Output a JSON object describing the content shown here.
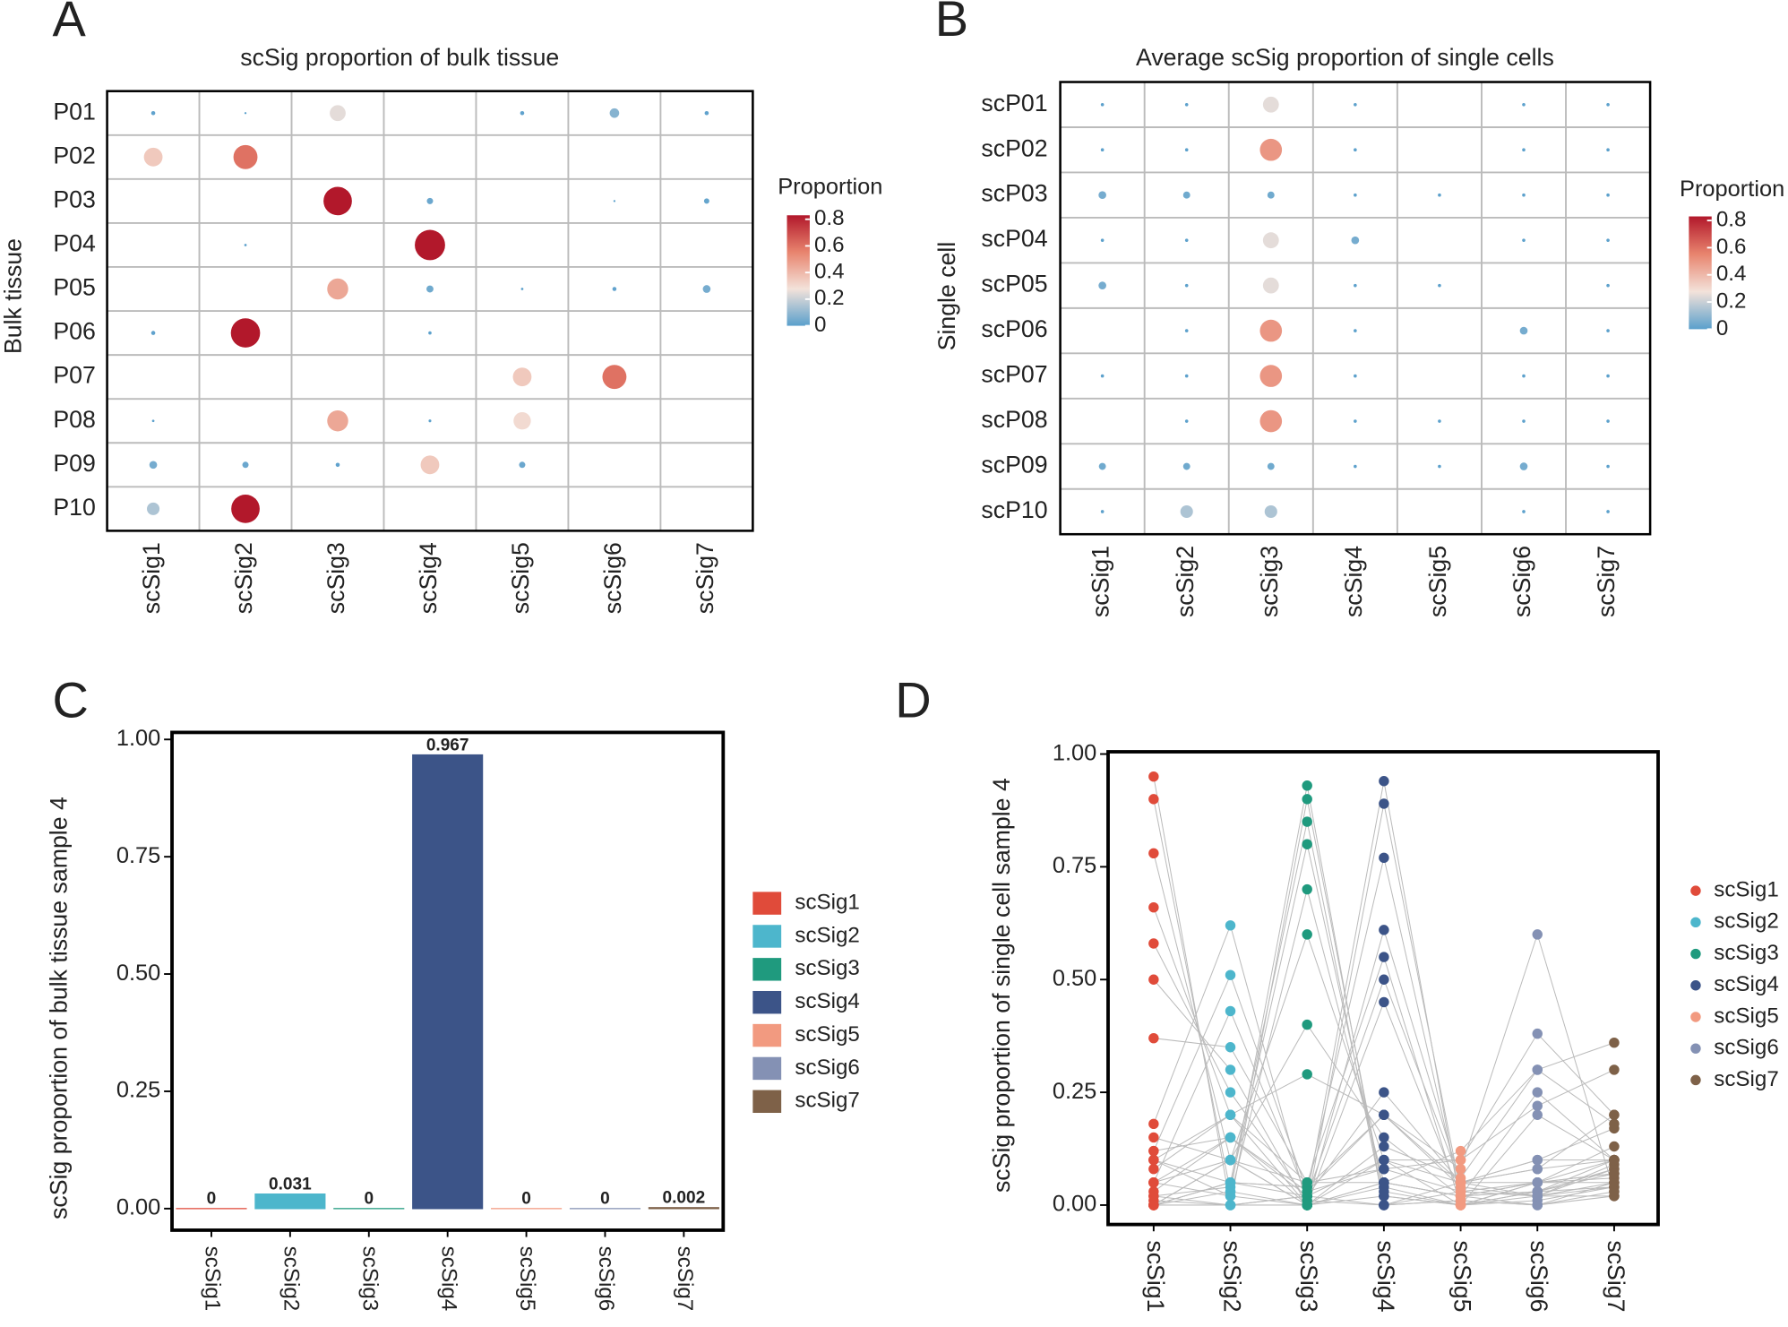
{
  "chart_data": [
    {
      "type": "dot",
      "panel": "A",
      "title": "scSig proportion of bulk tissue",
      "ylabel": "Bulk tissue",
      "x_categories": [
        "scSig1",
        "scSig2",
        "scSig3",
        "scSig4",
        "scSig5",
        "scSig6",
        "scSig7"
      ],
      "y_categories": [
        "P01",
        "P02",
        "P03",
        "P04",
        "P05",
        "P06",
        "P07",
        "P08",
        "P09",
        "P10"
      ],
      "values": [
        [
          0.01,
          0.001,
          0.25,
          null,
          0.01,
          0.08,
          0.01
        ],
        [
          0.35,
          0.6,
          null,
          null,
          null,
          null,
          null
        ],
        [
          null,
          null,
          0.85,
          0.03,
          null,
          0.001,
          0.02
        ],
        [
          null,
          0.002,
          null,
          0.97,
          null,
          null,
          null
        ],
        [
          null,
          null,
          0.45,
          0.04,
          0.002,
          0.01,
          0.05
        ],
        [
          0.01,
          0.9,
          null,
          0.005,
          null,
          null,
          null
        ],
        [
          null,
          null,
          null,
          null,
          0.35,
          0.6,
          null
        ],
        [
          0.002,
          null,
          0.45,
          0.003,
          0.3,
          null,
          null
        ],
        [
          0.05,
          0.03,
          0.01,
          0.35,
          0.03,
          null,
          null
        ],
        [
          0.15,
          0.85,
          null,
          null,
          null,
          null,
          null
        ]
      ],
      "legend_title": "Proportion",
      "colorscale": [
        "#5aa0cc",
        "#f3e2da",
        "#e8846e",
        "#b2182b"
      ],
      "color_lim": [
        0,
        0.83
      ],
      "color_ticks": [
        0,
        0.2,
        0.4,
        0.6,
        0.8
      ],
      "grid": true
    },
    {
      "type": "dot",
      "panel": "B",
      "title": "Average scSig proportion of single cells",
      "ylabel": "Single cell",
      "x_categories": [
        "scSig1",
        "scSig2",
        "scSig3",
        "scSig4",
        "scSig5",
        "scSig6",
        "scSig7"
      ],
      "y_categories": [
        "scP01",
        "scP02",
        "scP03",
        "scP04",
        "scP05",
        "scP06",
        "scP07",
        "scP08",
        "scP09",
        "scP10"
      ],
      "values": [
        [
          0.005,
          0.005,
          0.25,
          0.005,
          null,
          0.005,
          0.005
        ],
        [
          0.005,
          0.005,
          0.5,
          0.005,
          null,
          0.005,
          0.005
        ],
        [
          0.05,
          0.04,
          0.04,
          0.005,
          0.005,
          0.005,
          0.005
        ],
        [
          0.005,
          0.005,
          0.25,
          0.05,
          null,
          0.005,
          0.005
        ],
        [
          0.05,
          0.005,
          0.25,
          0.005,
          0.005,
          null,
          0.005
        ],
        [
          null,
          0.005,
          0.5,
          0.005,
          null,
          0.05,
          0.005
        ],
        [
          0.005,
          0.005,
          0.5,
          0.005,
          null,
          0.005,
          0.005
        ],
        [
          null,
          0.005,
          0.5,
          0.005,
          0.005,
          0.005,
          0.005
        ],
        [
          0.04,
          0.04,
          0.04,
          0.005,
          0.005,
          0.05,
          0.005
        ],
        [
          0.005,
          0.15,
          0.15,
          null,
          null,
          0.005,
          0.005
        ]
      ],
      "legend_title": "Proportion",
      "colorscale": [
        "#5aa0cc",
        "#f3e2da",
        "#e8846e",
        "#b2182b"
      ],
      "color_lim": [
        0,
        0.83
      ],
      "color_ticks": [
        0,
        0.2,
        0.4,
        0.6,
        0.8
      ],
      "grid": true
    },
    {
      "type": "bar",
      "panel": "C",
      "ylabel": "scSig proportion of bulk tissue sample 4",
      "categories": [
        "scSig1",
        "scSig2",
        "scSig3",
        "scSig4",
        "scSig5",
        "scSig6",
        "scSig7"
      ],
      "values": [
        0,
        0.031,
        0,
        0.967,
        0,
        0,
        0.002
      ],
      "colors": [
        "#e04b3a",
        "#4db6cc",
        "#1f9a7e",
        "#3c5488",
        "#f29a80",
        "#8491b4",
        "#7e6148"
      ],
      "ylim": [
        -0.046,
        1.015
      ],
      "yticks": [
        {
          "value": 0,
          "label": "0.00"
        },
        {
          "value": 0.25,
          "label": "0.25"
        },
        {
          "value": 0.5,
          "label": "0.50"
        },
        {
          "value": 0.75,
          "label": "0.75"
        },
        {
          "value": 1,
          "label": "1.00"
        }
      ]
    },
    {
      "type": "strip",
      "panel": "D",
      "ylabel": "scSig proportion of single cell sample 4",
      "categories": [
        "scSig1",
        "scSig2",
        "scSig3",
        "scSig4",
        "scSig5",
        "scSig6",
        "scSig7"
      ],
      "ylim": [
        -0.043,
        1.005
      ],
      "yticks": [
        {
          "value": 0,
          "label": "0.00"
        },
        {
          "value": 0.25,
          "label": "0.25"
        },
        {
          "value": 0.5,
          "label": "0.50"
        },
        {
          "value": 0.75,
          "label": "0.75"
        },
        {
          "value": 1,
          "label": "1.00"
        }
      ],
      "series": [
        {
          "name": "scSig1",
          "color": "#e04b3a",
          "values": [
            0.95,
            0.9,
            0.78,
            0.66,
            0.58,
            0.5,
            0.37,
            0.18,
            0.12,
            0.05,
            0,
            0.01,
            0,
            0.02,
            0.1,
            0,
            0.15,
            0.08,
            0,
            0.02,
            0,
            0.05,
            0,
            0.1,
            0.03,
            0,
            0.05,
            0.1,
            0.05,
            0.12
          ]
        },
        {
          "name": "scSig2",
          "color": "#4db6cc",
          "values": [
            0,
            0.03,
            0.1,
            0.2,
            0.25,
            0.3,
            0.35,
            0.62,
            0.51,
            0.43,
            0.03,
            0,
            0.05,
            0.04,
            0.02,
            0.1,
            0.1,
            0.2,
            0,
            0,
            0.05,
            0.02,
            0.1,
            0.05,
            0.15,
            0.05,
            0.15,
            0.2,
            0.1,
            0.15
          ]
        },
        {
          "name": "scSig3",
          "color": "#1f9a7e",
          "values": [
            0.02,
            0,
            0,
            0,
            0.01,
            0,
            0.05,
            0,
            0.03,
            0.02,
            0.93,
            0.9,
            0.85,
            0.8,
            0.7,
            0.6,
            0.4,
            0.29,
            0.02,
            0,
            0.04,
            0,
            0.05,
            0.02,
            0,
            0.04,
            0.02,
            0.05,
            0,
            0.03
          ]
        },
        {
          "name": "scSig4",
          "color": "#3c5488",
          "values": [
            0,
            0.02,
            0.05,
            0.04,
            0,
            0.1,
            0.08,
            0.05,
            0.2,
            0.25,
            0,
            0.02,
            0,
            0.03,
            0.05,
            0.1,
            0.15,
            0.2,
            0.94,
            0.89,
            0.77,
            0.61,
            0.55,
            0.5,
            0.45,
            0.2,
            0.1,
            0.05,
            0.13,
            0.08
          ]
        },
        {
          "name": "scSig5",
          "color": "#f29a80",
          "values": [
            0.01,
            0,
            0.02,
            0,
            0.05,
            0,
            0.03,
            0.02,
            0.04,
            0.05,
            0.01,
            0,
            0.03,
            0,
            0.02,
            0.05,
            0.02,
            0.05,
            0,
            0.03,
            0.02,
            0.05,
            0,
            0.05,
            0.02,
            0.08,
            0.1,
            0.12,
            0.06,
            0.1
          ]
        },
        {
          "name": "scSig6",
          "color": "#8491b4",
          "values": [
            0,
            0.01,
            0,
            0.05,
            0.02,
            0.03,
            0.05,
            0.03,
            0.02,
            0.1,
            0,
            0.03,
            0.02,
            0.05,
            0.03,
            0.05,
            0.05,
            0.08,
            0.02,
            0.02,
            0.05,
            0.1,
            0.2,
            0.08,
            0.25,
            0.6,
            0.38,
            0.3,
            0.3,
            0.22
          ]
        },
        {
          "name": "scSig7",
          "color": "#7e6148",
          "values": [
            0.02,
            0.04,
            0.05,
            0.05,
            0.09,
            0.07,
            0.07,
            0.1,
            0.08,
            0.1,
            0.03,
            0.04,
            0.05,
            0.06,
            0.08,
            0.1,
            0.13,
            0.1,
            0.02,
            0.04,
            0.07,
            0.17,
            0.1,
            0.2,
            0.1,
            0.03,
            0.2,
            0.18,
            0.36,
            0.3
          ]
        }
      ]
    }
  ]
}
